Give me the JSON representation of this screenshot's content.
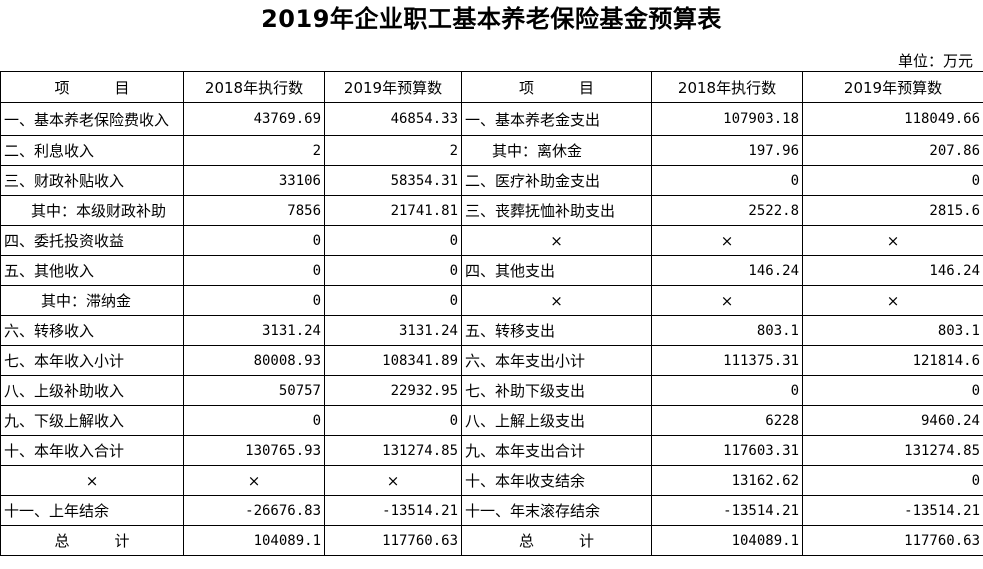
{
  "title": "2019年企业职工基本养老保险基金预算表",
  "unit": "单位：万元",
  "headers": [
    "项　　　目",
    "2018年执行数",
    "2019年预算数",
    "项　　　目",
    "2018年执行数",
    "2019年预算数"
  ],
  "rows": [
    [
      "一、基本养老保险费收入",
      "43769.69",
      "46854.33",
      "一、基本养老金支出",
      "107903.18",
      "118049.66"
    ],
    [
      "二、利息收入",
      "2",
      "2",
      "其中：离休金",
      "197.96",
      "207.86"
    ],
    [
      "三、财政补贴收入",
      "33106",
      "58354.31",
      "二、医疗补助金支出",
      "0",
      "0"
    ],
    [
      "其中：本级财政补助",
      "7856",
      "21741.81",
      "三、丧葬抚恤补助支出",
      "2522.8",
      "2815.6"
    ],
    [
      "四、委托投资收益",
      "0",
      "0",
      "×",
      "×",
      "×"
    ],
    [
      "五、其他收入",
      "0",
      "0",
      "四、其他支出",
      "146.24",
      "146.24"
    ],
    [
      "其中：滞纳金",
      "0",
      "0",
      "×",
      "×",
      "×"
    ],
    [
      "六、转移收入",
      "3131.24",
      "3131.24",
      "五、转移支出",
      "803.1",
      "803.1"
    ],
    [
      "七、本年收入小计",
      "80008.93",
      "108341.89",
      "六、本年支出小计",
      "111375.31",
      "121814.6"
    ],
    [
      "八、上级补助收入",
      "50757",
      "22932.95",
      "七、补助下级支出",
      "0",
      "0"
    ],
    [
      "九、下级上解收入",
      "0",
      "0",
      "八、上解上级支出",
      "6228",
      "9460.24"
    ],
    [
      "十、本年收入合计",
      "130765.93",
      "131274.85",
      "九、本年支出合计",
      "117603.31",
      "131274.85"
    ],
    [
      "×",
      "×",
      "×",
      "十、本年收支结余",
      "13162.62",
      "0"
    ],
    [
      "十一、上年结余",
      "-26676.83",
      "-13514.21",
      "十一、年末滚存结余",
      "-13514.21",
      "-13514.21"
    ],
    [
      "总　　　计",
      "104089.1",
      "117760.63",
      "总　　　计",
      "104089.1",
      "117760.63"
    ]
  ]
}
